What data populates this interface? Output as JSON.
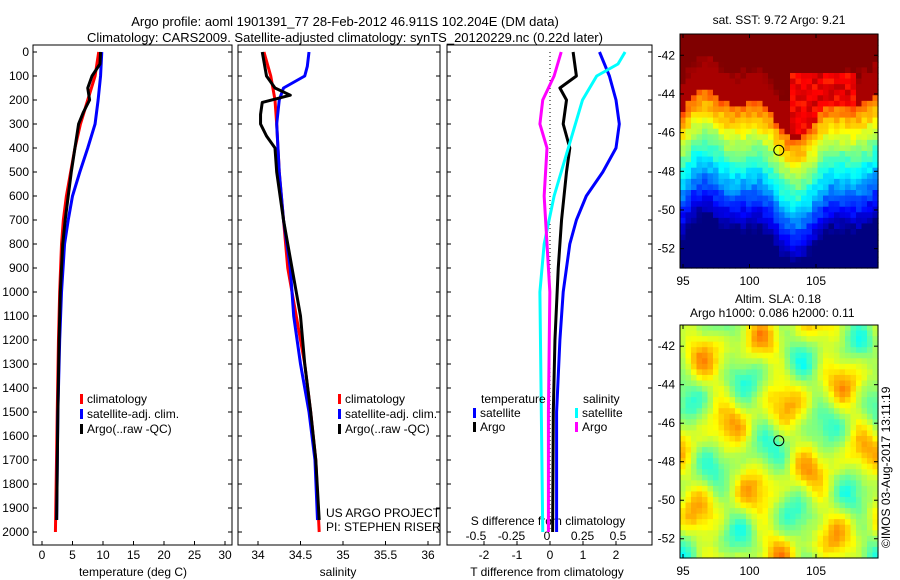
{
  "title_line1": "Argo profile: aoml 1901391_77 28-Feb-2012 46.911S 102.204E (DM data)",
  "title_line2": "Climatology: CARS2009. Satellite-adjusted climatology: synTS_20120229.nc (0.22d later)",
  "credit": "©IMOS 03-Aug-2017 13:11:19",
  "colors": {
    "climatology": "#ff0000",
    "satellite": "#0000ff",
    "argo": "#000000",
    "s_satellite": "#00ffff",
    "s_argo": "#ff00ff"
  },
  "chart_data": [
    {
      "type": "line",
      "xlabel": "temperature (deg C)",
      "xlim": [
        -2,
        31
      ],
      "ylim": [
        0,
        2050
      ],
      "xticks": [
        "0",
        "5",
        "10",
        "15",
        "20",
        "25",
        "30"
      ],
      "yticks": [
        "0",
        "100",
        "200",
        "300",
        "400",
        "500",
        "600",
        "700",
        "800",
        "900",
        "1000",
        "1100",
        "1200",
        "1300",
        "1400",
        "1500",
        "1600",
        "1700",
        "1800",
        "1900",
        "2000"
      ],
      "legend": [
        "climatology",
        "satellite-adj. clim.",
        "Argo(..raw -QC)"
      ],
      "series": [
        {
          "name": "climatology",
          "depth": [
            0,
            100,
            200,
            300,
            400,
            500,
            600,
            700,
            800,
            1000,
            1200,
            1500,
            2000
          ],
          "values": [
            9.3,
            8.7,
            7.5,
            6.3,
            5.4,
            4.7,
            4.0,
            3.5,
            3.2,
            2.9,
            2.7,
            2.5,
            2.2
          ]
        },
        {
          "name": "satellite-adj. clim.",
          "depth": [
            0,
            100,
            200,
            300,
            400,
            500,
            600,
            700,
            800,
            1000,
            1200,
            1500,
            1950
          ],
          "values": [
            9.8,
            9.6,
            9.2,
            8.7,
            7.5,
            6.2,
            5.0,
            4.3,
            3.7,
            3.2,
            2.9,
            2.6,
            2.4
          ]
        },
        {
          "name": "Argo(..raw -QC)",
          "depth": [
            0,
            50,
            100,
            150,
            200,
            250,
            300,
            400,
            500,
            600,
            700,
            800,
            1000,
            1200,
            1500,
            1950
          ],
          "values": [
            9.6,
            9.5,
            8.2,
            7.5,
            7.8,
            6.8,
            6.0,
            5.4,
            4.8,
            4.3,
            3.8,
            3.4,
            3.0,
            2.8,
            2.6,
            2.4
          ]
        }
      ]
    },
    {
      "type": "line",
      "xlabel": "salinity",
      "xlim": [
        33.8,
        36.1
      ],
      "ylim": [
        0,
        2050
      ],
      "xticks": [
        "34",
        "34.5",
        "35",
        "35.5",
        "36"
      ],
      "legend": [
        "climatology",
        "satellite-adj. clim.",
        "Argo(..raw -QC)"
      ],
      "annotation": [
        "US ARGO PROJECT",
        "PI: STEPHEN RISER"
      ],
      "series": [
        {
          "name": "climatology",
          "depth": [
            0,
            100,
            200,
            300,
            500,
            700,
            900,
            1100,
            1300,
            1500,
            1700,
            2000
          ],
          "values": [
            34.07,
            34.15,
            34.2,
            34.22,
            34.25,
            34.3,
            34.35,
            34.45,
            34.55,
            34.62,
            34.68,
            34.72
          ]
        },
        {
          "name": "satellite-adj. clim.",
          "depth": [
            0,
            60,
            100,
            150,
            200,
            300,
            500,
            700,
            900,
            1100,
            1300,
            1500,
            1700,
            1950
          ],
          "values": [
            34.6,
            34.58,
            34.55,
            34.3,
            34.25,
            34.22,
            34.25,
            34.3,
            34.38,
            34.42,
            34.5,
            34.6,
            34.67,
            34.7
          ]
        },
        {
          "name": "Argo(..raw -QC)",
          "depth": [
            0,
            100,
            150,
            180,
            210,
            260,
            300,
            350,
            400,
            500,
            700,
            900,
            1100,
            1300,
            1500,
            1700,
            1950
          ],
          "values": [
            34.05,
            34.1,
            34.2,
            34.38,
            34.05,
            34.03,
            34.03,
            34.1,
            34.2,
            34.22,
            34.3,
            34.4,
            34.5,
            34.55,
            34.62,
            34.68,
            34.72
          ]
        }
      ]
    },
    {
      "type": "line",
      "xlabel": "T difference from climatology",
      "xlabel_top": "S difference from climatology",
      "xlim": [
        -3,
        3
      ],
      "ylim": [
        0,
        2050
      ],
      "xticks": [
        "-2",
        "-1",
        "0",
        "1",
        "2"
      ],
      "s_ticks": [
        "-0.5",
        "-0.25",
        "0",
        "0.25",
        "0.5"
      ],
      "legend_titles": [
        "temperature",
        "salinity"
      ],
      "legend": [
        "satellite",
        "Argo",
        "satellite",
        "Argo"
      ],
      "series": [
        {
          "name": "T satellite",
          "depth": [
            0,
            100,
            200,
            300,
            400,
            500,
            600,
            700,
            800,
            900,
            1000,
            1200,
            1500,
            2000
          ],
          "values": [
            1.5,
            1.8,
            2.0,
            2.1,
            2.0,
            1.6,
            1.1,
            0.8,
            0.6,
            0.5,
            0.4,
            0.3,
            0.2,
            0.2
          ]
        },
        {
          "name": "T Argo",
          "depth": [
            0,
            100,
            150,
            200,
            300,
            400,
            500,
            700,
            900,
            1200,
            1500,
            2000
          ],
          "values": [
            0.7,
            0.8,
            0.3,
            0.5,
            0.4,
            0.6,
            0.5,
            0.35,
            0.25,
            0.15,
            0.1,
            0.08
          ]
        },
        {
          "name": "S satellite",
          "depth": [
            0,
            50,
            100,
            200,
            400,
            600,
            800,
            1000,
            1500,
            2000
          ],
          "values": [
            0.55,
            0.5,
            0.35,
            0.25,
            0.15,
            0.05,
            -0.02,
            -0.05,
            -0.04,
            -0.03
          ]
        },
        {
          "name": "S Argo",
          "depth": [
            0,
            100,
            200,
            300,
            400,
            600,
            800,
            1000,
            1500,
            2000
          ],
          "values": [
            0.1,
            0.05,
            -0.03,
            -0.05,
            0.0,
            -0.02,
            0.0,
            0.02,
            0.01,
            0.01
          ]
        }
      ]
    },
    {
      "type": "heatmap",
      "title": "sat. SST: 9.72 Argo: 9.21",
      "xlim": [
        94.8,
        109.7
      ],
      "ylim": [
        -53,
        -40.9
      ],
      "xticks": [
        "95",
        "100",
        "105"
      ],
      "yticks": [
        "-42",
        "-44",
        "-46",
        "-48",
        "-50",
        "-52"
      ],
      "marker": {
        "lon": 102.204,
        "lat": -46.911
      }
    },
    {
      "type": "heatmap",
      "title": "Altim. SLA: 0.18",
      "subtitle": "Argo h1000: 0.086 h2000: 0.11",
      "xlim": [
        94.8,
        109.7
      ],
      "ylim": [
        -53,
        -40.9
      ],
      "xticks": [
        "95",
        "100",
        "105"
      ],
      "yticks": [
        "-42",
        "-44",
        "-46",
        "-48",
        "-50",
        "-52"
      ],
      "marker": {
        "lon": 102.204,
        "lat": -46.911
      }
    }
  ]
}
